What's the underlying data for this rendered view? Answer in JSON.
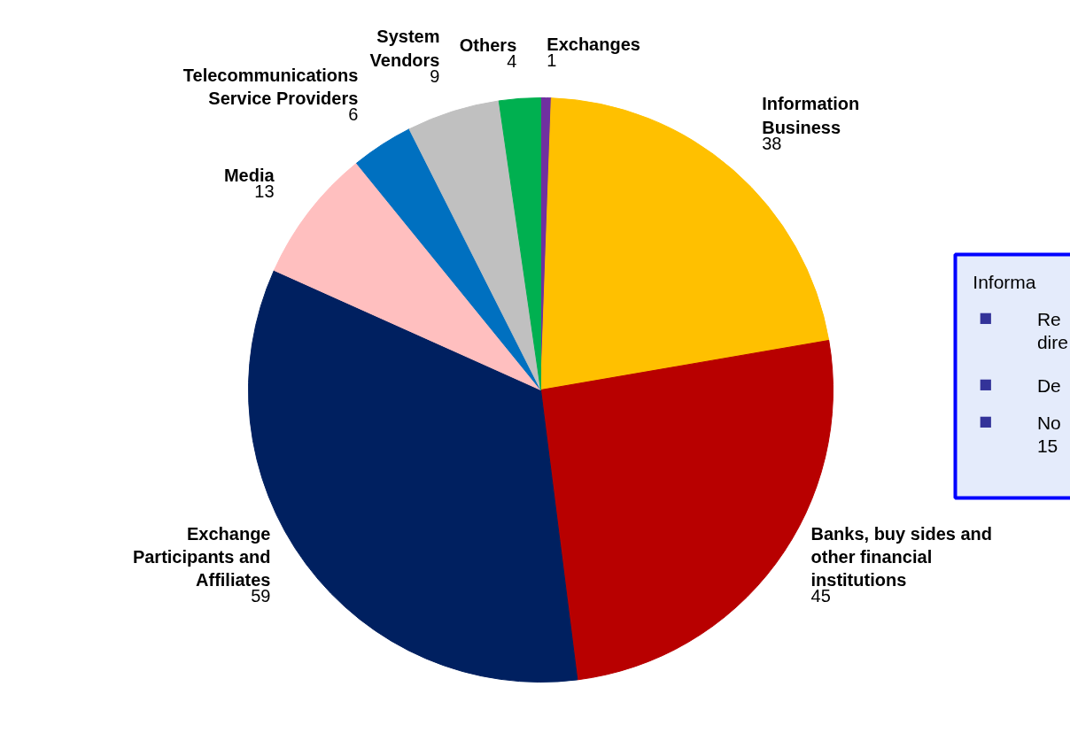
{
  "chart_data": {
    "type": "pie",
    "categories": [
      "Exchanges",
      "Information\nBusiness",
      "Banks, buy sides and\nother financial\ninstitutions",
      "Exchange\nParticipants and\nAffiliates",
      "Media",
      "Telecommunications\nService Providers",
      "System\nVendors",
      "Others"
    ],
    "values": [
      1,
      38,
      45,
      59,
      13,
      6,
      9,
      4
    ],
    "colors": [
      "#7030a0",
      "#ffc000",
      "#b80000",
      "#002060",
      "#ffbfbf",
      "#0070c0",
      "#c0c0c0",
      "#00b050"
    ],
    "data_labels": true,
    "annotations": [
      "Informa",
      "■ Re\ndire",
      "■ De",
      "■ No\n15"
    ]
  }
}
